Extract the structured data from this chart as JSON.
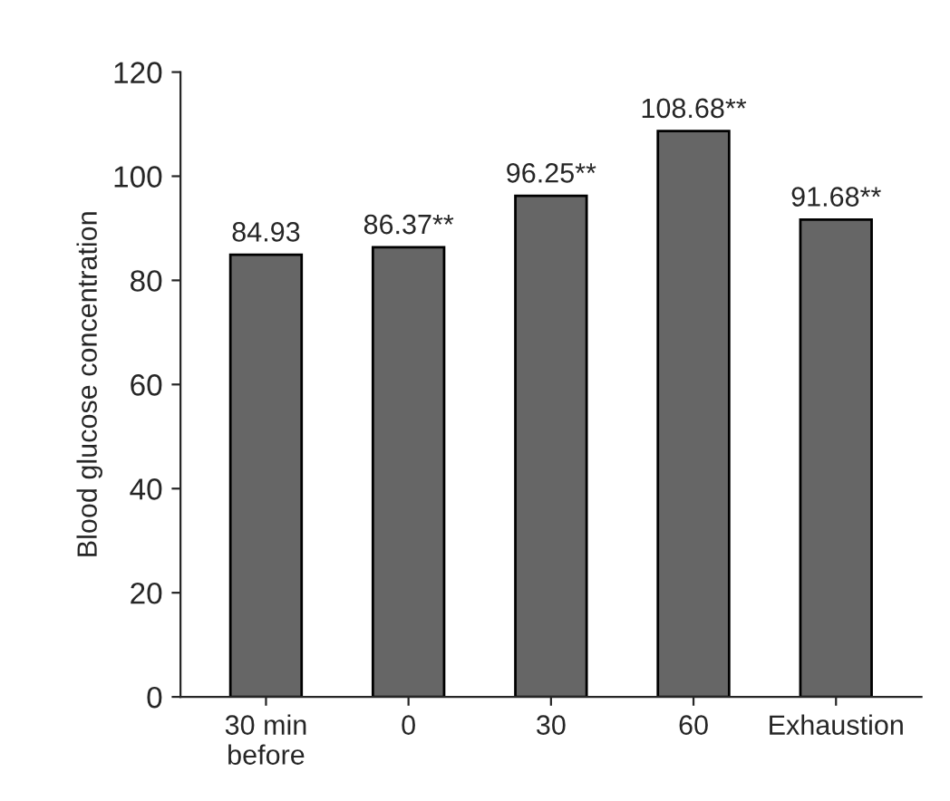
{
  "chart_data": {
    "type": "bar",
    "ylabel": "Blood glucose concentration",
    "categories": [
      "30 min\nbefore",
      "0",
      "30",
      "60",
      "Exhaustion"
    ],
    "values": [
      84.93,
      86.37,
      96.25,
      108.68,
      91.68
    ],
    "value_labels": [
      "84.93",
      "86.37**",
      "96.25**",
      "108.68**",
      "91.68**"
    ],
    "color": "#666666",
    "ylim": [
      0,
      120
    ],
    "yticks": [
      0,
      20,
      40,
      60,
      80,
      100,
      120
    ],
    "grid": false,
    "legend": false
  }
}
